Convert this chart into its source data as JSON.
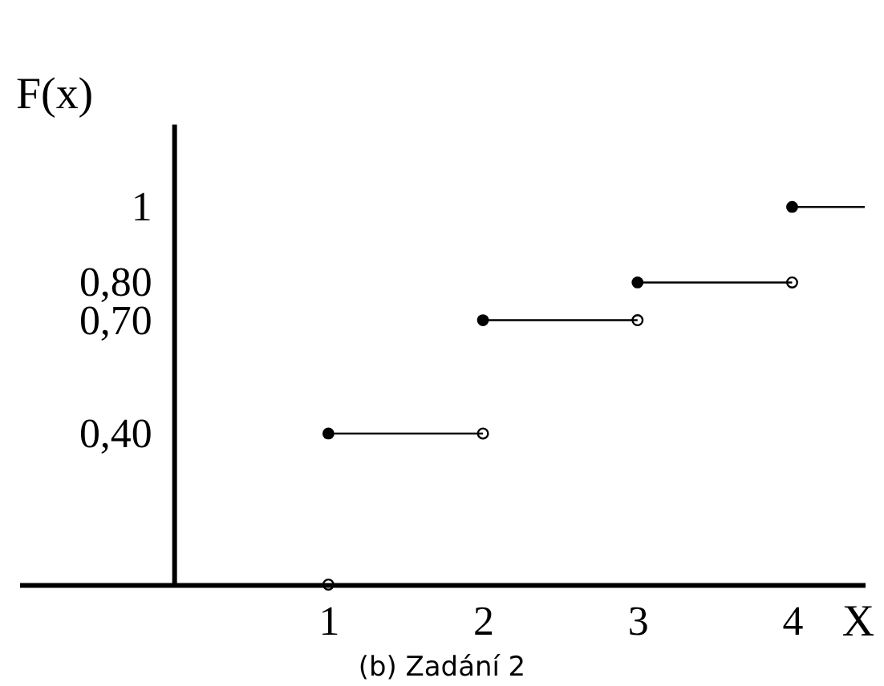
{
  "chart_data": {
    "type": "step",
    "title": "(b) Zadání 2",
    "xlabel": "X",
    "ylabel": "F(x)",
    "x": [
      1,
      2,
      3,
      4,
      4.47
    ],
    "series": [
      {
        "color": "#000000",
        "values": [
          0.4,
          0.7,
          0.8,
          1,
          1
        ]
      },
      {
        "type": "scatter",
        "color": "#000000",
        "x": [
          1,
          2,
          3,
          4
        ],
        "values": [
          0,
          0.4,
          0.7,
          0.8
        ]
      }
    ],
    "xlim": [
      -1,
      4.47
    ],
    "ylim": [
      0,
      1.22
    ],
    "xticks": [
      1,
      2,
      3,
      4
    ],
    "yticks": [
      {
        "value": 0.4,
        "label": "0,40"
      },
      {
        "value": 0.7,
        "label": "0,70"
      },
      {
        "value": 0.8,
        "label": "0,80"
      },
      {
        "value": 1,
        "label": "1"
      }
    ],
    "marker": "circle",
    "line_style": "solid",
    "grid": false
  }
}
